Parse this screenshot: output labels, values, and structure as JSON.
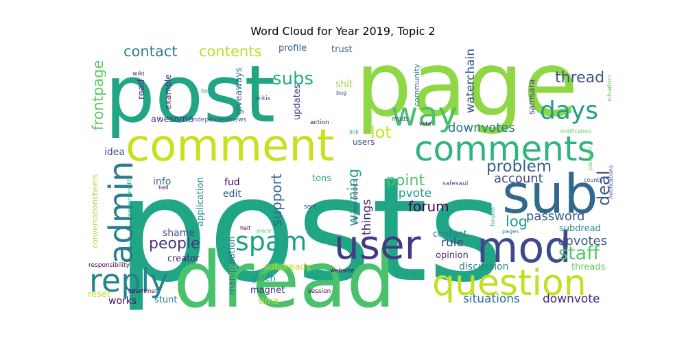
{
  "chart_data": {
    "type": "wordcloud",
    "title": "Word Cloud for Year 2019, Topic 2",
    "words": [
      {
        "text": "posts",
        "color": "#21a685"
      },
      {
        "text": "page",
        "color": "#8fd744"
      },
      {
        "text": "post",
        "color": "#21a685"
      },
      {
        "text": "dread",
        "color": "#4ac16d"
      },
      {
        "text": "comment",
        "color": "#c8e020"
      },
      {
        "text": "sub",
        "color": "#31688e"
      },
      {
        "text": "mod",
        "color": "#3e4989"
      },
      {
        "text": "user",
        "color": "#443983"
      },
      {
        "text": "question",
        "color": "#c2df23"
      },
      {
        "text": "comments",
        "color": "#2fb47c"
      },
      {
        "text": "admin",
        "color": "#287d8e"
      },
      {
        "text": "reply",
        "color": "#26828e"
      },
      {
        "text": "way",
        "color": "#48c16e"
      },
      {
        "text": "days",
        "color": "#1f9e89"
      },
      {
        "text": "spam",
        "color": "#1fa187"
      },
      {
        "text": "people",
        "color": "#453781"
      },
      {
        "text": "problem",
        "color": "#355f8d"
      },
      {
        "text": "staff",
        "color": "#52c569"
      },
      {
        "text": "deal",
        "color": "#3b528b"
      },
      {
        "text": "thread",
        "color": "#3b528b"
      },
      {
        "text": "contact",
        "color": "#277f8e"
      },
      {
        "text": "contents",
        "color": "#b8de29"
      },
      {
        "text": "subs",
        "color": "#25ac82"
      },
      {
        "text": "frontpage",
        "color": "#5ec962"
      },
      {
        "text": "lot",
        "color": "#c8e020"
      },
      {
        "text": "downvotes",
        "color": "#2c728e"
      },
      {
        "text": "forum",
        "color": "#440154"
      },
      {
        "text": "point",
        "color": "#4ac16d"
      },
      {
        "text": "support",
        "color": "#32648e"
      },
      {
        "text": "warning",
        "color": "#22a884"
      },
      {
        "text": "account",
        "color": "#3e4989"
      },
      {
        "text": "log",
        "color": "#1e9c89"
      },
      {
        "text": "password",
        "color": "#38588c"
      },
      {
        "text": "upvote",
        "color": "#1fa188"
      },
      {
        "text": "upvotes",
        "color": "#3b528b"
      },
      {
        "text": "rule",
        "color": "#3f4788"
      },
      {
        "text": "things",
        "color": "#482878"
      },
      {
        "text": "waterchain",
        "color": "#39568c"
      },
      {
        "text": "situations",
        "color": "#2c738e"
      },
      {
        "text": "downvote",
        "color": "#482475"
      },
      {
        "text": "discussion",
        "color": "#25848e"
      },
      {
        "text": "threads",
        "color": "#5ec962"
      },
      {
        "text": "subdread",
        "color": "#24868e"
      },
      {
        "text": "opinion",
        "color": "#46327e"
      },
      {
        "text": "content",
        "color": "#2a788e"
      },
      {
        "text": "glitch",
        "color": "#20928c"
      },
      {
        "text": "magnet",
        "color": "#472a7a"
      },
      {
        "text": "time",
        "color": "#b5de2b"
      },
      {
        "text": "subdreads",
        "color": "#c2df23"
      },
      {
        "text": "manipulation",
        "color": "#2d718e"
      },
      {
        "text": "edit",
        "color": "#3a548c"
      },
      {
        "text": "fud",
        "color": "#440154"
      },
      {
        "text": "tons",
        "color": "#29af7f"
      },
      {
        "text": "application",
        "color": "#21918c"
      },
      {
        "text": "shame",
        "color": "#3e4a89"
      },
      {
        "text": "creator",
        "color": "#481f70"
      },
      {
        "text": "info",
        "color": "#2d708e"
      },
      {
        "text": "idea",
        "color": "#3b528b"
      },
      {
        "text": "reset",
        "color": "#c0df25"
      },
      {
        "text": "works",
        "color": "#481467"
      },
      {
        "text": "stunt",
        "color": "#2a788e"
      },
      {
        "text": "awesome",
        "color": "#46327e"
      },
      {
        "text": "example",
        "color": "#46337e"
      },
      {
        "text": "read",
        "color": "#443a83"
      },
      {
        "text": "giveaways",
        "color": "#2e6e8e"
      },
      {
        "text": "updates",
        "color": "#3f4788"
      },
      {
        "text": "shit",
        "color": "#9bd93c"
      },
      {
        "text": "profile",
        "color": "#33638d"
      },
      {
        "text": "trust",
        "color": "#31668e"
      },
      {
        "text": "community",
        "color": "#2a768e"
      },
      {
        "text": "samsara",
        "color": "#414487"
      },
      {
        "text": "conversationcheers",
        "color": "#a8db34"
      },
      {
        "text": "independentnews",
        "color": "#3b528b"
      },
      {
        "text": "action",
        "color": "#440154"
      },
      {
        "text": "wikis",
        "color": "#3e4989"
      },
      {
        "text": "wiki",
        "color": "#46307e"
      },
      {
        "text": "bots",
        "color": "#1f9f88"
      },
      {
        "text": "bug",
        "color": "#3b528b"
      },
      {
        "text": "mods",
        "color": "#3b528b"
      },
      {
        "text": "link",
        "color": "#25ab82"
      },
      {
        "text": "vote",
        "color": "#440154"
      },
      {
        "text": "users",
        "color": "#3b528b"
      },
      {
        "text": "announcements",
        "color": "#414487"
      },
      {
        "text": "sort",
        "color": "#3e4989"
      },
      {
        "text": "safesaul",
        "color": "#3e4989"
      },
      {
        "text": "hell",
        "color": "#440154"
      },
      {
        "text": "half",
        "color": "#440154"
      },
      {
        "text": "place",
        "color": "#5ec962"
      },
      {
        "text": "spammer",
        "color": "#440154"
      },
      {
        "text": "website",
        "color": "#440154"
      },
      {
        "text": "session",
        "color": "#440154"
      },
      {
        "text": "responsibility",
        "color": "#440154"
      },
      {
        "text": "hugbunteredit",
        "color": "#1fa188"
      },
      {
        "text": "forums",
        "color": "#25ab82"
      },
      {
        "text": "pages",
        "color": "#2a788e"
      },
      {
        "text": "counts",
        "color": "#3e4989"
      },
      {
        "text": "platform",
        "color": "#5ec962"
      },
      {
        "text": "notifications",
        "color": "#3b528b"
      },
      {
        "text": "notification",
        "color": "#5ec962"
      },
      {
        "text": "situation",
        "color": "#5ec962"
      }
    ]
  }
}
